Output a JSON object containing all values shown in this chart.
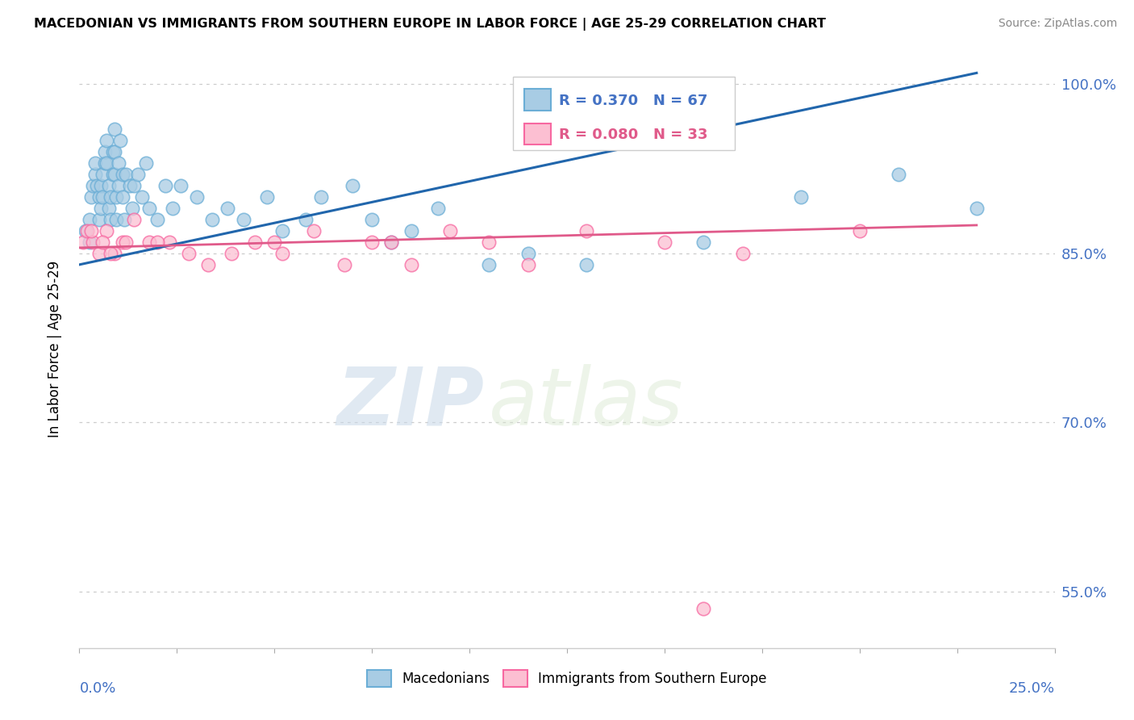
{
  "title": "MACEDONIAN VS IMMIGRANTS FROM SOUTHERN EUROPE IN LABOR FORCE | AGE 25-29 CORRELATION CHART",
  "source": "Source: ZipAtlas.com",
  "legend_macedonians": "Macedonians",
  "legend_immigrants": "Immigrants from Southern Europe",
  "R_blue": 0.37,
  "N_blue": 67,
  "R_pink": 0.08,
  "N_pink": 33,
  "watermark_zip": "ZIP",
  "watermark_atlas": "atlas",
  "blue_color": "#a8cce4",
  "blue_edge_color": "#6baed6",
  "pink_color": "#fcbfd2",
  "pink_edge_color": "#f768a1",
  "blue_line_color": "#2166ac",
  "pink_line_color": "#e05a8a",
  "xmin": 0.0,
  "xmax": 25.0,
  "ymin": 50.0,
  "ymax": 103.0,
  "yticks": [
    55.0,
    70.0,
    85.0,
    100.0
  ],
  "ytick_labels": [
    "55.0%",
    "70.0%",
    "85.0%",
    "100.0%"
  ],
  "blue_x": [
    0.15,
    0.25,
    0.25,
    0.3,
    0.35,
    0.4,
    0.4,
    0.45,
    0.5,
    0.5,
    0.55,
    0.55,
    0.6,
    0.6,
    0.65,
    0.65,
    0.7,
    0.7,
    0.75,
    0.75,
    0.8,
    0.8,
    0.85,
    0.85,
    0.9,
    0.9,
    0.9,
    0.95,
    0.95,
    1.0,
    1.0,
    1.05,
    1.1,
    1.1,
    1.15,
    1.2,
    1.3,
    1.35,
    1.4,
    1.5,
    1.6,
    1.7,
    1.8,
    2.0,
    2.2,
    2.4,
    2.6,
    3.0,
    3.4,
    3.8,
    4.2,
    4.8,
    5.2,
    5.8,
    6.2,
    7.0,
    7.5,
    8.0,
    8.5,
    9.2,
    10.5,
    11.5,
    13.0,
    16.0,
    18.5,
    21.0,
    23.0
  ],
  "blue_y": [
    87,
    86,
    88,
    90,
    91,
    92,
    93,
    91,
    88,
    90,
    89,
    91,
    92,
    90,
    93,
    94,
    95,
    93,
    91,
    89,
    88,
    90,
    92,
    94,
    96,
    94,
    92,
    90,
    88,
    93,
    91,
    95,
    92,
    90,
    88,
    92,
    91,
    89,
    91,
    92,
    90,
    93,
    89,
    88,
    91,
    89,
    91,
    90,
    88,
    89,
    88,
    90,
    87,
    88,
    90,
    91,
    88,
    86,
    87,
    89,
    84,
    85,
    84,
    86,
    90,
    92,
    89
  ],
  "pink_x": [
    0.1,
    0.2,
    0.35,
    0.5,
    0.7,
    0.9,
    1.1,
    1.4,
    1.8,
    2.3,
    2.8,
    3.3,
    3.9,
    4.5,
    5.2,
    6.0,
    6.8,
    7.5,
    8.5,
    9.5,
    10.5,
    11.5,
    13.0,
    15.0,
    17.0,
    20.0,
    0.3,
    0.6,
    0.8,
    1.2,
    2.0,
    5.0,
    8.0
  ],
  "pink_y": [
    86,
    87,
    86,
    85,
    87,
    85,
    86,
    88,
    86,
    86,
    85,
    84,
    85,
    86,
    85,
    87,
    84,
    86,
    84,
    87,
    86,
    84,
    87,
    86,
    85,
    87,
    87,
    86,
    85,
    86,
    86,
    86,
    86
  ],
  "blue_trend_x": [
    0.0,
    23.0
  ],
  "blue_trend_y": [
    84.0,
    101.0
  ],
  "pink_trend_x": [
    0.0,
    23.0
  ],
  "pink_trend_y": [
    85.5,
    87.5
  ],
  "one_outlier_x": 16.0,
  "one_outlier_y": 53.5
}
